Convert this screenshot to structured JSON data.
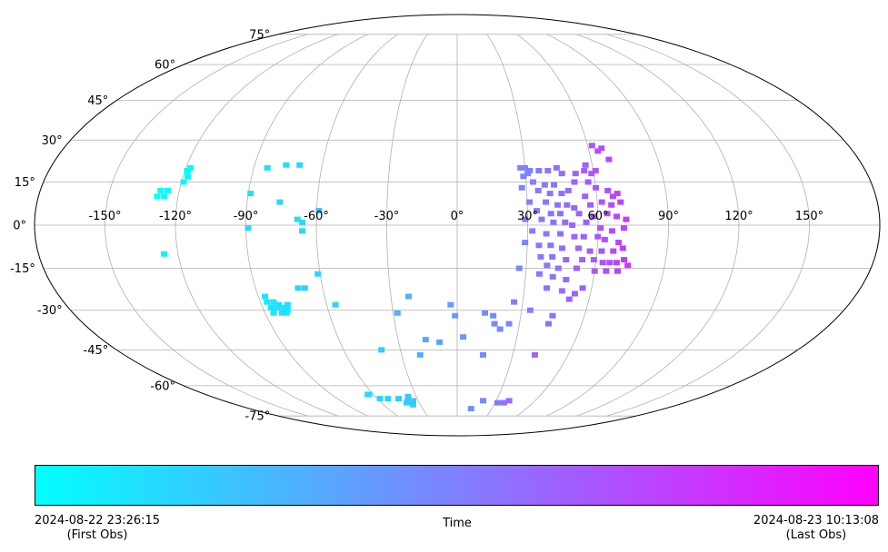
{
  "chart_data": {
    "type": "scatter",
    "projection": "mollweide",
    "xlabel": "",
    "ylabel": "",
    "grid": true,
    "lon_ticks": [
      "-150°",
      "-120°",
      "-90°",
      "-60°",
      "-30°",
      "0°",
      "30°",
      "60°",
      "90°",
      "120°",
      "150°"
    ],
    "lat_ticks": [
      "75°",
      "60°",
      "45°",
      "30°",
      "15°",
      "0°",
      "-15°",
      "-30°",
      "-45°",
      "-60°",
      "-75°"
    ],
    "colormap": {
      "start": "#00ffff",
      "end": "#ff00ff"
    },
    "colorbar": {
      "label": "Time",
      "left_line1": "2024-08-22 23:26:15",
      "left_line2": "(First Obs)",
      "right_line1": "2024-08-23 10:13:08",
      "right_line2": "(Last Obs)"
    },
    "points": [
      {
        "lon": -128,
        "lat": 12,
        "t": 0.0
      },
      {
        "lon": -129,
        "lat": 10,
        "t": 0.0
      },
      {
        "lon": -126,
        "lat": 10,
        "t": 0.01
      },
      {
        "lon": -125,
        "lat": 12,
        "t": 0.01
      },
      {
        "lon": -119,
        "lat": 19,
        "t": 0.02
      },
      {
        "lon": -118,
        "lat": 17,
        "t": 0.02
      },
      {
        "lon": -118,
        "lat": 20,
        "t": 0.02
      },
      {
        "lon": -119,
        "lat": 15,
        "t": 0.03
      },
      {
        "lon": -126,
        "lat": -10,
        "t": 0.03
      },
      {
        "lon": -84,
        "lat": 20,
        "t": 0.12
      },
      {
        "lon": -76,
        "lat": 21,
        "t": 0.13
      },
      {
        "lon": -70,
        "lat": 21,
        "t": 0.14
      },
      {
        "lon": -89,
        "lat": 11,
        "t": 0.12
      },
      {
        "lon": -76,
        "lat": 8,
        "t": 0.14
      },
      {
        "lon": -68,
        "lat": 2,
        "t": 0.15
      },
      {
        "lon": -66,
        "lat": 1,
        "t": 0.15
      },
      {
        "lon": -66,
        "lat": -2,
        "t": 0.16
      },
      {
        "lon": -89,
        "lat": -1,
        "t": 0.13
      },
      {
        "lon": -61,
        "lat": -17,
        "t": 0.17
      },
      {
        "lon": -71,
        "lat": -22,
        "t": 0.17
      },
      {
        "lon": -68,
        "lat": -22,
        "t": 0.17
      },
      {
        "lon": -56,
        "lat": -28,
        "t": 0.18
      },
      {
        "lon": -87,
        "lat": -25,
        "t": 0.1
      },
      {
        "lon": -87,
        "lat": -27,
        "t": 0.1
      },
      {
        "lon": -86,
        "lat": -29,
        "t": 0.1
      },
      {
        "lon": -84,
        "lat": -27,
        "t": 0.1
      },
      {
        "lon": -83,
        "lat": -29,
        "t": 0.11
      },
      {
        "lon": -82,
        "lat": -28,
        "t": 0.11
      },
      {
        "lon": -80,
        "lat": -29,
        "t": 0.11
      },
      {
        "lon": -80,
        "lat": -31,
        "t": 0.11
      },
      {
        "lon": -79,
        "lat": -30,
        "t": 0.11
      },
      {
        "lon": -86,
        "lat": -31,
        "t": 0.1
      },
      {
        "lon": -82,
        "lat": -31,
        "t": 0.11
      },
      {
        "lon": -78,
        "lat": -28,
        "t": 0.12
      },
      {
        "lon": -63,
        "lat": -64,
        "t": 0.13
      },
      {
        "lon": -64,
        "lat": -64,
        "t": 0.14
      },
      {
        "lon": -58,
        "lat": -66,
        "t": 0.16
      },
      {
        "lon": -52,
        "lat": -66,
        "t": 0.17
      },
      {
        "lon": -44,
        "lat": -66,
        "t": 0.19
      },
      {
        "lon": -40,
        "lat": -68,
        "t": 0.2
      },
      {
        "lon": -36,
        "lat": -69,
        "t": 0.22
      },
      {
        "lon": -34,
        "lat": -67,
        "t": 0.22
      },
      {
        "lon": -36,
        "lat": -65,
        "t": 0.21
      },
      {
        "lon": -38,
        "lat": -67,
        "t": 0.21
      },
      {
        "lon": -40,
        "lat": -45,
        "t": 0.2
      },
      {
        "lon": -59,
        "lat": 5,
        "t": 0.28
      },
      {
        "lon": -28,
        "lat": -31,
        "t": 0.3
      },
      {
        "lon": -22,
        "lat": -25,
        "t": 0.32
      },
      {
        "lon": -20,
        "lat": -47,
        "t": 0.32
      },
      {
        "lon": -16,
        "lat": -41,
        "t": 0.34
      },
      {
        "lon": -9,
        "lat": -42,
        "t": 0.36
      },
      {
        "lon": -3,
        "lat": -28,
        "t": 0.38
      },
      {
        "lon": -1,
        "lat": -32,
        "t": 0.39
      },
      {
        "lon": 3,
        "lat": -40,
        "t": 0.41
      },
      {
        "lon": 13,
        "lat": -31,
        "t": 0.44
      },
      {
        "lon": 17,
        "lat": -32,
        "t": 0.45
      },
      {
        "lon": 18,
        "lat": -35,
        "t": 0.46
      },
      {
        "lon": 21,
        "lat": -37,
        "t": 0.47
      },
      {
        "lon": 25,
        "lat": -35,
        "t": 0.48
      },
      {
        "lon": 14,
        "lat": -47,
        "t": 0.46
      },
      {
        "lon": 34,
        "lat": -30,
        "t": 0.52
      },
      {
        "lon": 26,
        "lat": -27,
        "t": 0.5
      },
      {
        "lon": 44,
        "lat": -35,
        "t": 0.55
      },
      {
        "lon": 45,
        "lat": -32,
        "t": 0.56
      },
      {
        "lon": 12,
        "lat": -71,
        "t": 0.43
      },
      {
        "lon": 20,
        "lat": -67,
        "t": 0.47
      },
      {
        "lon": 32,
        "lat": -68,
        "t": 0.52
      },
      {
        "lon": 37,
        "lat": -68,
        "t": 0.55
      },
      {
        "lon": 40,
        "lat": -67,
        "t": 0.58
      },
      {
        "lon": 42,
        "lat": -47,
        "t": 0.6
      },
      {
        "lon": 28,
        "lat": 20,
        "t": 0.48
      },
      {
        "lon": 30,
        "lat": 20,
        "t": 0.49
      },
      {
        "lon": 32,
        "lat": 19,
        "t": 0.5
      },
      {
        "lon": 29,
        "lat": 17,
        "t": 0.49
      },
      {
        "lon": 31,
        "lat": 18,
        "t": 0.5
      },
      {
        "lon": 36,
        "lat": 19,
        "t": 0.52
      },
      {
        "lon": 40,
        "lat": 19,
        "t": 0.54
      },
      {
        "lon": 44,
        "lat": 20,
        "t": 0.57
      },
      {
        "lon": 46,
        "lat": 18,
        "t": 0.58
      },
      {
        "lon": 52,
        "lat": 18,
        "t": 0.61
      },
      {
        "lon": 56,
        "lat": 19,
        "t": 0.63
      },
      {
        "lon": 59,
        "lat": 18,
        "t": 0.65
      },
      {
        "lon": 33,
        "lat": 15,
        "t": 0.51
      },
      {
        "lon": 38,
        "lat": 14,
        "t": 0.53
      },
      {
        "lon": 42,
        "lat": 14,
        "t": 0.55
      },
      {
        "lon": 51,
        "lat": 15,
        "t": 0.6
      },
      {
        "lon": 57,
        "lat": 15,
        "t": 0.64
      },
      {
        "lon": 28,
        "lat": 13,
        "t": 0.49
      },
      {
        "lon": 35,
        "lat": 12,
        "t": 0.52
      },
      {
        "lon": 40,
        "lat": 11,
        "t": 0.54
      },
      {
        "lon": 45,
        "lat": 11,
        "t": 0.57
      },
      {
        "lon": 48,
        "lat": 12,
        "t": 0.59
      },
      {
        "lon": 55,
        "lat": 10,
        "t": 0.62
      },
      {
        "lon": 60,
        "lat": 13,
        "t": 0.66
      },
      {
        "lon": 65,
        "lat": 12,
        "t": 0.7
      },
      {
        "lon": 69,
        "lat": 11,
        "t": 0.74
      },
      {
        "lon": 67,
        "lat": 10,
        "t": 0.72
      },
      {
        "lon": 31,
        "lat": 8,
        "t": 0.5
      },
      {
        "lon": 38,
        "lat": 8,
        "t": 0.53
      },
      {
        "lon": 43,
        "lat": 7,
        "t": 0.56
      },
      {
        "lon": 47,
        "lat": 7,
        "t": 0.58
      },
      {
        "lon": 50,
        "lat": 6,
        "t": 0.6
      },
      {
        "lon": 57,
        "lat": 7,
        "t": 0.63
      },
      {
        "lon": 62,
        "lat": 8,
        "t": 0.67
      },
      {
        "lon": 66,
        "lat": 7,
        "t": 0.71
      },
      {
        "lon": 70,
        "lat": 8,
        "t": 0.75
      },
      {
        "lon": 34,
        "lat": 5,
        "t": 0.51
      },
      {
        "lon": 40,
        "lat": 4,
        "t": 0.54
      },
      {
        "lon": 44,
        "lat": 4,
        "t": 0.56
      },
      {
        "lon": 52,
        "lat": 4,
        "t": 0.61
      },
      {
        "lon": 58,
        "lat": 3,
        "t": 0.64
      },
      {
        "lon": 64,
        "lat": 4,
        "t": 0.69
      },
      {
        "lon": 68,
        "lat": 3,
        "t": 0.73
      },
      {
        "lon": 72,
        "lat": 2,
        "t": 0.77
      },
      {
        "lon": 29,
        "lat": 2,
        "t": 0.49
      },
      {
        "lon": 36,
        "lat": 2,
        "t": 0.52
      },
      {
        "lon": 41,
        "lat": 1,
        "t": 0.55
      },
      {
        "lon": 46,
        "lat": 1,
        "t": 0.58
      },
      {
        "lon": 49,
        "lat": 0,
        "t": 0.59
      },
      {
        "lon": 55,
        "lat": 1,
        "t": 0.62
      },
      {
        "lon": 61,
        "lat": -1,
        "t": 0.67
      },
      {
        "lon": 66,
        "lat": -2,
        "t": 0.71
      },
      {
        "lon": 71,
        "lat": -1,
        "t": 0.76
      },
      {
        "lon": 32,
        "lat": -2,
        "t": 0.5
      },
      {
        "lon": 38,
        "lat": -3,
        "t": 0.53
      },
      {
        "lon": 44,
        "lat": -3,
        "t": 0.56
      },
      {
        "lon": 50,
        "lat": -4,
        "t": 0.6
      },
      {
        "lon": 54,
        "lat": -4,
        "t": 0.62
      },
      {
        "lon": 60,
        "lat": -4,
        "t": 0.66
      },
      {
        "lon": 63,
        "lat": -5,
        "t": 0.68
      },
      {
        "lon": 69,
        "lat": -6,
        "t": 0.74
      },
      {
        "lon": 29,
        "lat": -6,
        "t": 0.49
      },
      {
        "lon": 35,
        "lat": -7,
        "t": 0.52
      },
      {
        "lon": 40,
        "lat": -7,
        "t": 0.54
      },
      {
        "lon": 45,
        "lat": -8,
        "t": 0.57
      },
      {
        "lon": 52,
        "lat": -8,
        "t": 0.61
      },
      {
        "lon": 57,
        "lat": -9,
        "t": 0.64
      },
      {
        "lon": 62,
        "lat": -9,
        "t": 0.67
      },
      {
        "lon": 67,
        "lat": -9,
        "t": 0.72
      },
      {
        "lon": 71,
        "lat": -8,
        "t": 0.76
      },
      {
        "lon": 36,
        "lat": -11,
        "t": 0.53
      },
      {
        "lon": 41,
        "lat": -11,
        "t": 0.55
      },
      {
        "lon": 47,
        "lat": -12,
        "t": 0.59
      },
      {
        "lon": 54,
        "lat": -12,
        "t": 0.62
      },
      {
        "lon": 59,
        "lat": -12,
        "t": 0.65
      },
      {
        "lon": 63,
        "lat": -13,
        "t": 0.68
      },
      {
        "lon": 66,
        "lat": -13,
        "t": 0.71
      },
      {
        "lon": 69,
        "lat": -13,
        "t": 0.74
      },
      {
        "lon": 72,
        "lat": -12,
        "t": 0.77
      },
      {
        "lon": 74,
        "lat": -14,
        "t": 0.79
      },
      {
        "lon": 39,
        "lat": -14,
        "t": 0.54
      },
      {
        "lon": 44,
        "lat": -15,
        "t": 0.57
      },
      {
        "lon": 52,
        "lat": -15,
        "t": 0.61
      },
      {
        "lon": 60,
        "lat": -16,
        "t": 0.66
      },
      {
        "lon": 65,
        "lat": -16,
        "t": 0.7
      },
      {
        "lon": 70,
        "lat": -16,
        "t": 0.75
      },
      {
        "lon": 36,
        "lat": -17,
        "t": 0.53
      },
      {
        "lon": 42,
        "lat": -18,
        "t": 0.56
      },
      {
        "lon": 48,
        "lat": -19,
        "t": 0.59
      },
      {
        "lon": 27,
        "lat": -15,
        "t": 0.48
      },
      {
        "lon": 40,
        "lat": -22,
        "t": 0.55
      },
      {
        "lon": 47,
        "lat": -23,
        "t": 0.59
      },
      {
        "lon": 53,
        "lat": -24,
        "t": 0.62
      },
      {
        "lon": 56,
        "lat": -22,
        "t": 0.63
      },
      {
        "lon": 51,
        "lat": -26,
        "t": 0.61
      },
      {
        "lon": 62,
        "lat": 28,
        "t": 0.67
      },
      {
        "lon": 64,
        "lat": 26,
        "t": 0.69
      },
      {
        "lon": 66,
        "lat": 27,
        "t": 0.71
      },
      {
        "lon": 68,
        "lat": 23,
        "t": 0.73
      },
      {
        "lon": 57,
        "lat": 21,
        "t": 0.64
      },
      {
        "lon": 61,
        "lat": 19,
        "t": 0.67
      }
    ]
  }
}
